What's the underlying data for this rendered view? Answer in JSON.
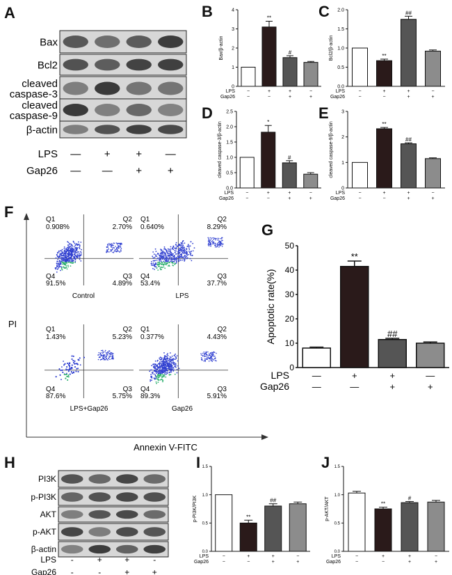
{
  "panel_letters": [
    "A",
    "B",
    "C",
    "D",
    "E",
    "F",
    "G",
    "H",
    "I",
    "J"
  ],
  "blot_A": {
    "rows": [
      "Bax",
      "Bcl2",
      "cleaved\ncaspase-3",
      "cleaved\ncaspase-9",
      "β-actin"
    ],
    "lps_label": "LPS",
    "gap_label": "Gap26",
    "lps_signs": [
      "—",
      "+",
      "+",
      "—"
    ],
    "gap_signs": [
      "—",
      "—",
      "+",
      "+"
    ]
  },
  "blot_H": {
    "rows": [
      "PI3K",
      "p-PI3K",
      "AKT",
      "p-AKT",
      "β-actin"
    ],
    "lps_label": "LPS",
    "gap_label": "Gap26",
    "lps_signs": [
      "-",
      "+",
      "+",
      "-"
    ],
    "gap_signs": [
      "-",
      "-",
      "+",
      "+"
    ]
  },
  "flow": {
    "y_axis_label": "PI",
    "x_axis_label": "Annexin V-FITC",
    "plots": [
      {
        "name": "Control",
        "q1": "0.908%",
        "q2": "2.70%",
        "q3": "4.89%",
        "q4": "91.5%"
      },
      {
        "name": "LPS",
        "q1": "0.640%",
        "q2": "8.29%",
        "q3": "37.7%",
        "q4": "53.4%"
      },
      {
        "name": "LPS+Gap26",
        "q1": "1.43%",
        "q2": "5.23%",
        "q3": "5.75%",
        "q4": "87.6%"
      },
      {
        "name": "Gap26",
        "q1": "0.377%",
        "q2": "4.43%",
        "q3": "5.91%",
        "q4": "89.3%"
      }
    ]
  },
  "chart_data": [
    {
      "id": "B",
      "type": "bar",
      "ylabel": "Bax/β-actin",
      "ylim": [
        0,
        4
      ],
      "yticks": [
        "0",
        "1",
        "2",
        "3",
        "4"
      ],
      "values": [
        1.0,
        3.1,
        1.5,
        1.25
      ],
      "errors": [
        0,
        0.3,
        0.1,
        0.05
      ],
      "marks": [
        "",
        "**",
        "#",
        ""
      ],
      "lps_label": "LPS",
      "gap_label": "Gap26",
      "lps_signs": [
        "−",
        "+",
        "+",
        "−"
      ],
      "gap_signs": [
        "−",
        "−",
        "+",
        "+"
      ]
    },
    {
      "id": "C",
      "type": "bar",
      "ylabel": "Bcl2/β-actin",
      "ylim": [
        0,
        2
      ],
      "yticks": [
        "0.0",
        "0.5",
        "1.0",
        "1.5",
        "2.0"
      ],
      "values": [
        1.0,
        0.67,
        1.75,
        0.92
      ],
      "errors": [
        0,
        0.04,
        0.08,
        0.03
      ],
      "marks": [
        "",
        "**",
        "##",
        ""
      ],
      "lps_label": "LPS",
      "gap_label": "Gap26",
      "lps_signs": [
        "−",
        "+",
        "+",
        "−"
      ],
      "gap_signs": [
        "−",
        "−",
        "+",
        "+"
      ]
    },
    {
      "id": "D",
      "type": "bar",
      "ylabel": "cleaved caspase-3/β-actin",
      "ylim": [
        0,
        2.5
      ],
      "yticks": [
        "0.0",
        "0.5",
        "1.0",
        "1.5",
        "2.0",
        "2.5"
      ],
      "values": [
        1.0,
        1.82,
        0.82,
        0.45
      ],
      "errors": [
        0,
        0.22,
        0.07,
        0.05
      ],
      "marks": [
        "",
        "*",
        "#",
        ""
      ],
      "lps_label": "LPS",
      "gap_label": "Gap26",
      "lps_signs": [
        "−",
        "+",
        "+",
        "−"
      ],
      "gap_signs": [
        "−",
        "−",
        "+",
        "+"
      ]
    },
    {
      "id": "E",
      "type": "bar",
      "ylabel": "cleaved caspase-9/β-actin",
      "ylim": [
        0,
        3
      ],
      "yticks": [
        "0",
        "1",
        "2",
        "3"
      ],
      "values": [
        1.0,
        2.32,
        1.73,
        1.15
      ],
      "errors": [
        0,
        0.05,
        0.04,
        0.03
      ],
      "marks": [
        "",
        "**",
        "##",
        ""
      ],
      "lps_label": "LPS",
      "gap_label": "Gap26",
      "lps_signs": [
        "−",
        "+",
        "+",
        "−"
      ],
      "gap_signs": [
        "−",
        "−",
        "+",
        "+"
      ]
    },
    {
      "id": "G",
      "type": "bar",
      "ylabel": "Apoptotic rate(%)",
      "ylim": [
        0,
        50
      ],
      "yticks": [
        "0",
        "10",
        "20",
        "30",
        "40",
        "50"
      ],
      "values": [
        8.0,
        41.5,
        11.5,
        10.0
      ],
      "errors": [
        0.4,
        2.2,
        0.5,
        0.5
      ],
      "marks": [
        "",
        "**",
        "##",
        ""
      ],
      "lps_label": "LPS",
      "gap_label": "Gap26",
      "lps_signs": [
        "—",
        "+",
        "+",
        "—"
      ],
      "gap_signs": [
        "—",
        "—",
        "+",
        "+"
      ]
    },
    {
      "id": "I",
      "type": "bar",
      "ylabel": "p-PI3K/PI3K",
      "ylim": [
        0,
        1.5
      ],
      "yticks": [
        "0.0",
        "0.5",
        "1.0",
        "1.5"
      ],
      "values": [
        1.0,
        0.5,
        0.8,
        0.84
      ],
      "errors": [
        0,
        0.05,
        0.04,
        0.03
      ],
      "marks": [
        "",
        "**",
        "##",
        ""
      ],
      "lps_label": "LPS",
      "gap_label": "Gap26",
      "lps_signs": [
        "−",
        "+",
        "+",
        "−"
      ],
      "gap_signs": [
        "−",
        "−",
        "+",
        "+"
      ]
    },
    {
      "id": "J",
      "type": "bar",
      "ylabel": "p-AKT/AKT",
      "ylim": [
        0,
        1.5
      ],
      "yticks": [
        "0.0",
        "0.5",
        "1.0",
        "1.5"
      ],
      "values": [
        1.03,
        0.75,
        0.86,
        0.87
      ],
      "errors": [
        0.03,
        0.03,
        0.02,
        0.03
      ],
      "marks": [
        "",
        "**",
        "#",
        ""
      ],
      "lps_label": "LPS",
      "gap_label": "Gap26",
      "lps_signs": [
        "−",
        "+",
        "+",
        "−"
      ],
      "gap_signs": [
        "−",
        "−",
        "+",
        "+"
      ]
    }
  ],
  "colors": {
    "bar_fills": [
      "#ffffff",
      "#2a1a1a",
      "#555555",
      "#8c8c8c"
    ],
    "dots": "#2f3fd0",
    "dense": "#30b070"
  }
}
